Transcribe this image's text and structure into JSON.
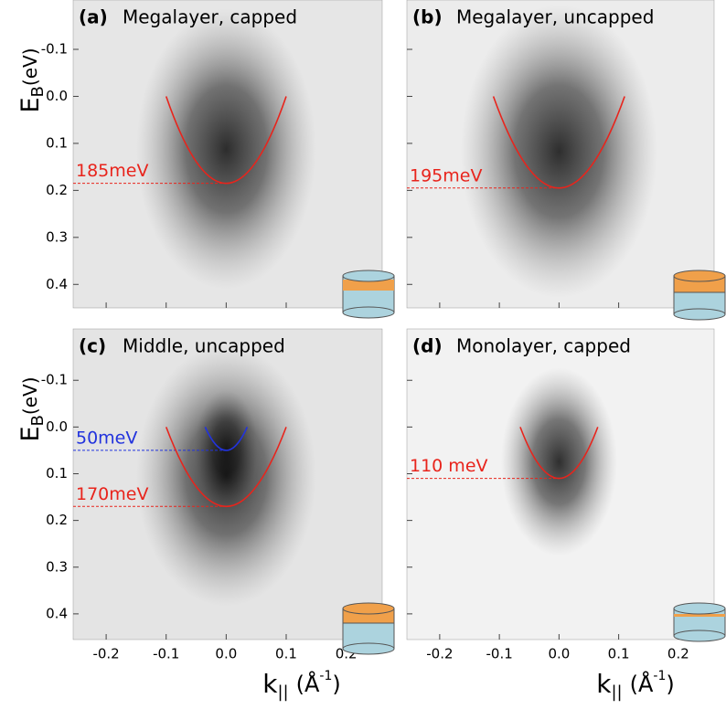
{
  "chart_data": [
    {
      "type": "arpes",
      "panel": "(a)",
      "title": "Megalayer, capped",
      "ylabel": {
        "symbol": "E",
        "sub": "B",
        "unit": "(eV)"
      },
      "xlim": [
        -0.255,
        0.26
      ],
      "ylim": [
        -0.205,
        0.45
      ],
      "y_inverted": true,
      "xticks": [
        -0.2,
        -0.1,
        {
          "value": 0,
          "label": "0.0"
        },
        0.1,
        0.2
      ],
      "show_xtick_labels": false,
      "yticks": [
        -0.1,
        {
          "value": 0,
          "label": "0.0"
        },
        0.1,
        0.2,
        0.3,
        0.4
      ],
      "show_ytick_labels": true,
      "bands": [
        {
          "color": "#e8241c",
          "k": [
            -0.1,
            0,
            0.1
          ],
          "E": [
            0,
            0.185,
            0
          ],
          "value_label": "185meV"
        }
      ]
    },
    {
      "type": "arpes",
      "panel": "(b)",
      "title": "Megalayer, uncapped",
      "xlim": [
        -0.255,
        0.26
      ],
      "ylim": [
        -0.205,
        0.45
      ],
      "y_inverted": true,
      "xticks": [
        -0.2,
        -0.1,
        {
          "value": 0,
          "label": "0.0"
        },
        0.1,
        0.2
      ],
      "show_xtick_labels": false,
      "yticks": [
        -0.1,
        {
          "value": 0,
          "label": "0.0"
        },
        0.1,
        0.2,
        0.3,
        0.4
      ],
      "show_ytick_labels": false,
      "bands": [
        {
          "color": "#e8241c",
          "k": [
            -0.11,
            0,
            0.11
          ],
          "E": [
            0,
            0.195,
            0
          ],
          "value_label": "195meV"
        }
      ]
    },
    {
      "type": "arpes",
      "panel": "(c)",
      "title": "Middle, uncapped",
      "ylabel": {
        "symbol": "E",
        "sub": "B",
        "unit": "(eV)"
      },
      "xlabel": {
        "symbol": "k",
        "sub": "||",
        "unit": "(Å",
        "sup": "-1",
        "close": ")"
      },
      "xlim": [
        -0.255,
        0.26
      ],
      "ylim": [
        -0.21,
        0.455
      ],
      "y_inverted": true,
      "xticks": [
        -0.2,
        -0.1,
        {
          "value": 0,
          "label": "0.0"
        },
        0.1,
        0.2
      ],
      "show_xtick_labels": true,
      "yticks": [
        -0.1,
        {
          "value": 0,
          "label": "0.0"
        },
        0.1,
        0.2,
        0.3,
        0.4
      ],
      "show_ytick_labels": true,
      "bands": [
        {
          "color": "#2233dd",
          "k": [
            -0.035,
            0,
            0.035
          ],
          "E": [
            0,
            0.05,
            0
          ],
          "value_label": "50meV"
        },
        {
          "color": "#e8241c",
          "k": [
            -0.1,
            0,
            0.1
          ],
          "E": [
            0,
            0.17,
            0
          ],
          "value_label": "170meV"
        }
      ]
    },
    {
      "type": "arpes",
      "panel": "(d)",
      "title": "Monolayer, capped",
      "xlabel": {
        "symbol": "k",
        "sub": "||",
        "unit": "(Å",
        "sup": "-1",
        "close": ")"
      },
      "xlim": [
        -0.255,
        0.26
      ],
      "ylim": [
        -0.21,
        0.455
      ],
      "y_inverted": true,
      "xticks": [
        -0.2,
        -0.1,
        {
          "value": 0,
          "label": "0.0"
        },
        0.1,
        0.2
      ],
      "show_xtick_labels": true,
      "yticks": [
        -0.1,
        {
          "value": 0,
          "label": "0.0"
        },
        0.1,
        0.2,
        0.3,
        0.4
      ],
      "show_ytick_labels": false,
      "bands": [
        {
          "color": "#e8241c",
          "k": [
            -0.065,
            0,
            0.065
          ],
          "E": [
            0,
            0.11,
            0
          ],
          "value_label": "110 meV"
        }
      ]
    }
  ]
}
